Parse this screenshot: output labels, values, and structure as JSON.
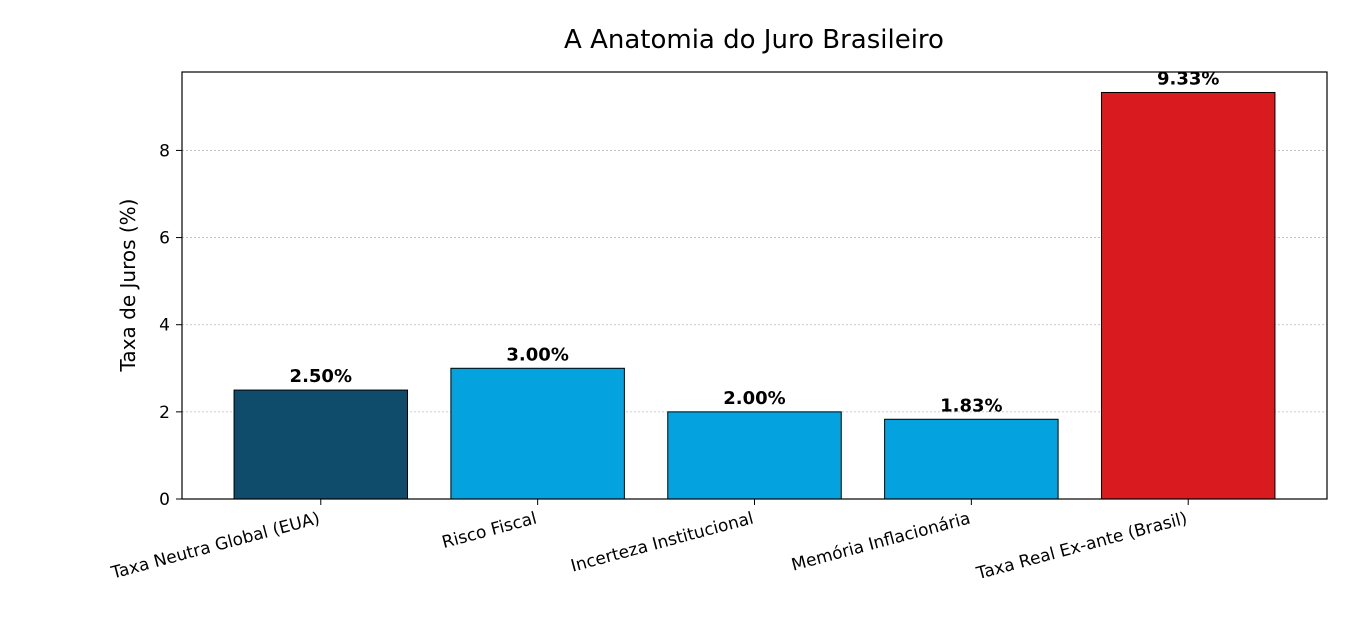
{
  "chart_data": {
    "type": "bar",
    "title": "A Anatomia do Juro Brasileiro",
    "y_label": "Taxa de Juros (%)",
    "categories": [
      "Taxa Neutra Global (EUA)",
      "Risco Fiscal",
      "Incerteza Institucional",
      "Memória Inflacionária",
      "Taxa Real Ex-ante (Brasil)"
    ],
    "values": [
      2.5,
      3.0,
      2.0,
      1.83,
      9.33
    ],
    "value_labels": [
      "2.50%",
      "3.00%",
      "2.00%",
      "1.83%",
      "9.33%"
    ],
    "colors": [
      "#0f4c6b",
      "#04a3e0",
      "#04a3e0",
      "#04a3e0",
      "#d91a1e"
    ],
    "edge_color": "#000000",
    "ylim": [
      0,
      9.8
    ],
    "yticks": [
      0,
      2,
      4,
      6,
      8
    ],
    "grid": true
  }
}
